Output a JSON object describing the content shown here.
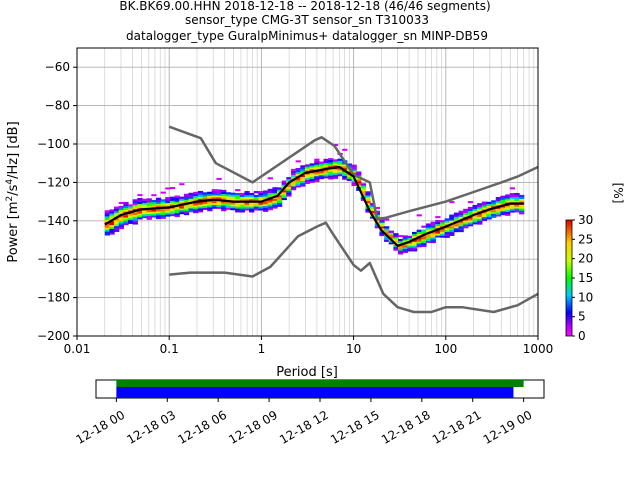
{
  "chart_data": {
    "type": "heatmap",
    "title_lines": [
      "BK.BK69.00.HHN   2018-12-18 -- 2018-12-18  (46/46 segments)",
      "sensor_type CMG-3T sensor_sn T310033",
      "datalogger_type GuralpMinimus+ datalogger_sn MINP-DB59"
    ],
    "xlabel": "Period [s]",
    "ylabel_parts": [
      "Power [m",
      "2",
      "/s",
      "4",
      "/Hz] [dB]"
    ],
    "x_scale": "log",
    "xlim": [
      0.01,
      1000
    ],
    "ylim": [
      -200,
      -50
    ],
    "grid": true,
    "x_tick_labels": [
      "0.01",
      "0.1",
      "1",
      "10",
      "100",
      "1000"
    ],
    "x_tick_values": [
      0.01,
      0.1,
      1,
      10,
      100,
      1000
    ],
    "y_ticks": [
      -200,
      -180,
      -160,
      -140,
      -120,
      -100,
      -80,
      -60
    ],
    "colorbar": {
      "label": "[%]",
      "range": [
        0,
        30
      ],
      "ticks": [
        0,
        5,
        10,
        15,
        20,
        25,
        30
      ]
    },
    "series": [
      {
        "role": "median",
        "color": "#000000",
        "points": [
          [
            0.02,
            -142
          ],
          [
            0.03,
            -137
          ],
          [
            0.05,
            -134
          ],
          [
            0.1,
            -133
          ],
          [
            0.2,
            -130
          ],
          [
            0.3,
            -129
          ],
          [
            0.5,
            -130
          ],
          [
            1,
            -130
          ],
          [
            1.5,
            -127
          ],
          [
            2,
            -120
          ],
          [
            3,
            -115
          ],
          [
            5,
            -113
          ],
          [
            7,
            -112
          ],
          [
            10,
            -117
          ],
          [
            15,
            -135
          ],
          [
            20,
            -145
          ],
          [
            30,
            -153
          ],
          [
            40,
            -151
          ],
          [
            60,
            -147
          ],
          [
            100,
            -143
          ],
          [
            200,
            -137
          ],
          [
            300,
            -134
          ],
          [
            500,
            -131
          ],
          [
            700,
            -131
          ]
        ]
      },
      {
        "role": "noise-model-high",
        "color": "#666666",
        "points": [
          [
            0.1,
            -91
          ],
          [
            0.22,
            -97
          ],
          [
            0.32,
            -110
          ],
          [
            0.8,
            -120
          ],
          [
            3.8,
            -98
          ],
          [
            4.5,
            -96.5
          ],
          [
            6.2,
            -101
          ],
          [
            10,
            -116
          ],
          [
            15,
            -120
          ],
          [
            18,
            -139
          ],
          [
            22,
            -138.5
          ],
          [
            40,
            -135
          ],
          [
            100,
            -130
          ],
          [
            200,
            -125
          ],
          [
            400,
            -120
          ],
          [
            600,
            -117
          ],
          [
            1000,
            -112
          ]
        ]
      },
      {
        "role": "noise-model-low",
        "color": "#666666",
        "points": [
          [
            0.1,
            -168
          ],
          [
            0.17,
            -167
          ],
          [
            0.4,
            -167
          ],
          [
            0.8,
            -169
          ],
          [
            1.25,
            -164
          ],
          [
            2.5,
            -148
          ],
          [
            4,
            -143
          ],
          [
            5,
            -141
          ],
          [
            6,
            -147
          ],
          [
            10,
            -163
          ],
          [
            12,
            -166
          ],
          [
            15,
            -162
          ],
          [
            21,
            -178
          ],
          [
            30,
            -185
          ],
          [
            45,
            -187.5
          ],
          [
            70,
            -187.5
          ],
          [
            100,
            -185
          ],
          [
            150,
            -185
          ],
          [
            330,
            -187.5
          ],
          [
            600,
            -184
          ],
          [
            1000,
            -178
          ]
        ]
      }
    ]
  },
  "timeline": {
    "tick_labels": [
      "12-18 00",
      "12-18 03",
      "12-18 06",
      "12-18 09",
      "12-18 12",
      "12-18 15",
      "12-18 18",
      "12-18 21",
      "12-19 00"
    ],
    "tick_hours": [
      0,
      3,
      6,
      9,
      12,
      15,
      18,
      21,
      24
    ],
    "range_hours": [
      -1.2,
      25.2
    ],
    "data_available": {
      "start_h": 0,
      "end_h": 24,
      "color": "#008000"
    },
    "segments_used": {
      "start_h": 0,
      "end_h": 23.4,
      "color": "#0000ff"
    }
  }
}
